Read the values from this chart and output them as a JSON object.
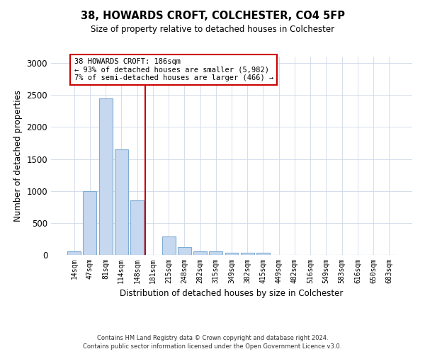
{
  "title1": "38, HOWARDS CROFT, COLCHESTER, CO4 5FP",
  "title2": "Size of property relative to detached houses in Colchester",
  "xlabel": "Distribution of detached houses by size in Colchester",
  "ylabel": "Number of detached properties",
  "categories": [
    "14sqm",
    "47sqm",
    "81sqm",
    "114sqm",
    "148sqm",
    "181sqm",
    "215sqm",
    "248sqm",
    "282sqm",
    "315sqm",
    "349sqm",
    "382sqm",
    "415sqm",
    "449sqm",
    "482sqm",
    "516sqm",
    "549sqm",
    "583sqm",
    "616sqm",
    "650sqm",
    "683sqm"
  ],
  "values": [
    50,
    1000,
    2450,
    1650,
    850,
    0,
    290,
    120,
    55,
    55,
    35,
    30,
    30,
    0,
    0,
    0,
    0,
    0,
    0,
    0,
    0
  ],
  "bar_color": "#c5d8f0",
  "bar_edge_color": "#7eadd4",
  "vline_color": "#cc0000",
  "annotation_text": "38 HOWARDS CROFT: 186sqm\n← 93% of detached houses are smaller (5,982)\n7% of semi-detached houses are larger (466) →",
  "annotation_box_color": "#cc0000",
  "ylim": [
    0,
    3100
  ],
  "yticks": [
    0,
    500,
    1000,
    1500,
    2000,
    2500,
    3000
  ],
  "footer1": "Contains HM Land Registry data © Crown copyright and database right 2024.",
  "footer2": "Contains public sector information licensed under the Open Government Licence v3.0.",
  "bg_color": "#ffffff",
  "grid_color": "#d0d8e8"
}
